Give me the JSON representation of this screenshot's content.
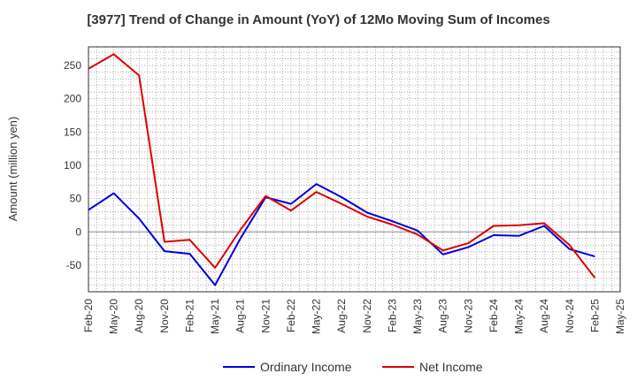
{
  "chart_data": {
    "type": "line",
    "title": "[3977]  Trend of Change in Amount (YoY) of 12Mo Moving Sum of Incomes",
    "xlabel": "",
    "ylabel": "Amount (million yen)",
    "categories": [
      "Feb-20",
      "May-20",
      "Aug-20",
      "Nov-20",
      "Feb-21",
      "May-21",
      "Aug-21",
      "Nov-21",
      "Feb-22",
      "May-22",
      "Aug-22",
      "Nov-22",
      "Feb-23",
      "May-23",
      "Aug-23",
      "Nov-23",
      "Feb-24",
      "May-24",
      "Aug-24",
      "Nov-24",
      "Feb-25",
      "May-25"
    ],
    "ylim": [
      -90,
      278
    ],
    "yticks": [
      250,
      200,
      150,
      100,
      50,
      0,
      -50
    ],
    "grid": true,
    "legend_position": "bottom",
    "series": [
      {
        "name": "Ordinary Income",
        "color": "#0000dd",
        "values": [
          33,
          58,
          20,
          -29,
          -33,
          -80,
          -10,
          52,
          42,
          72,
          52,
          29,
          16,
          2,
          -34,
          -23,
          -5,
          -6,
          9,
          -26,
          -37,
          null
        ]
      },
      {
        "name": "Net Income",
        "color": "#dd0000",
        "values": [
          245,
          267,
          235,
          -15,
          -12,
          -54,
          3,
          54,
          32,
          60,
          42,
          23,
          11,
          -4,
          -28,
          -17,
          9,
          10,
          13,
          -20,
          -69,
          null
        ]
      }
    ]
  }
}
